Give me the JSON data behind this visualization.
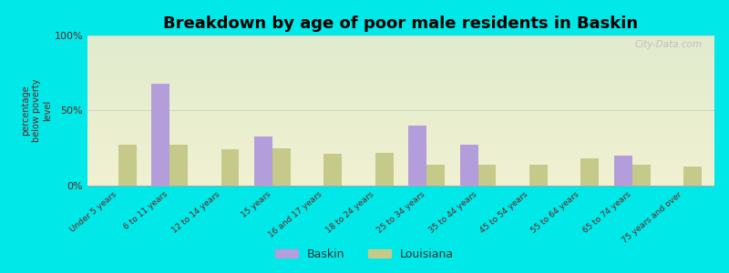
{
  "title": "Breakdown by age of poor male residents in Baskin",
  "categories": [
    "Under 5 years",
    "6 to 11 years",
    "12 to 14 years",
    "15 years",
    "16 and 17 years",
    "18 to 24 years",
    "25 to 34 years",
    "35 to 44 years",
    "45 to 54 years",
    "55 to 64 years",
    "65 to 74 years",
    "75 years and over"
  ],
  "baskin_values": [
    0,
    68,
    0,
    33,
    0,
    0,
    40,
    27,
    0,
    0,
    20,
    0
  ],
  "louisiana_values": [
    27,
    27,
    24,
    25,
    21,
    22,
    14,
    14,
    14,
    18,
    14,
    13
  ],
  "baskin_color": "#b39ddb",
  "louisiana_color": "#c5c98a",
  "ylabel": "percentage\nbelow poverty\nlevel",
  "yticks": [
    0,
    50,
    100
  ],
  "ytick_labels": [
    "0%",
    "50%",
    "100%"
  ],
  "outer_bg": "#00e8e8",
  "title_fontsize": 13,
  "bar_width": 0.35,
  "watermark": "City-Data.com",
  "legend_labels": [
    "Baskin",
    "Louisiana"
  ]
}
